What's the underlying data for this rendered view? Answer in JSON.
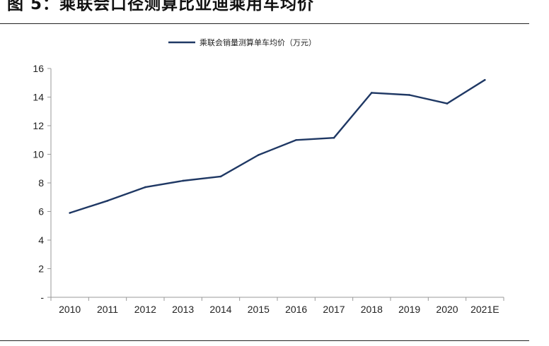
{
  "figure": {
    "title": "图 5：乘联会口径测算比亚迪乘用车均价"
  },
  "chart_data": {
    "type": "line",
    "title": "",
    "xlabel": "",
    "ylabel": "",
    "categories": [
      "2010",
      "2011",
      "2012",
      "2013",
      "2014",
      "2015",
      "2016",
      "2017",
      "2018",
      "2019",
      "2020",
      "2021E"
    ],
    "series": [
      {
        "name": "乘联会销量测算单车均价（万元）",
        "color": "#1f3864",
        "values": [
          5.9,
          6.75,
          7.7,
          8.15,
          8.45,
          9.95,
          11.0,
          11.15,
          14.3,
          14.15,
          13.55,
          15.2
        ]
      }
    ],
    "ylim": [
      0,
      16
    ],
    "yticks": [
      0,
      2,
      4,
      6,
      8,
      10,
      12,
      14,
      16
    ],
    "ytick_labels": [
      "-",
      "2",
      "4",
      "6",
      "8",
      "10",
      "12",
      "14",
      "16"
    ],
    "grid": false,
    "legend_position": "top-center"
  }
}
